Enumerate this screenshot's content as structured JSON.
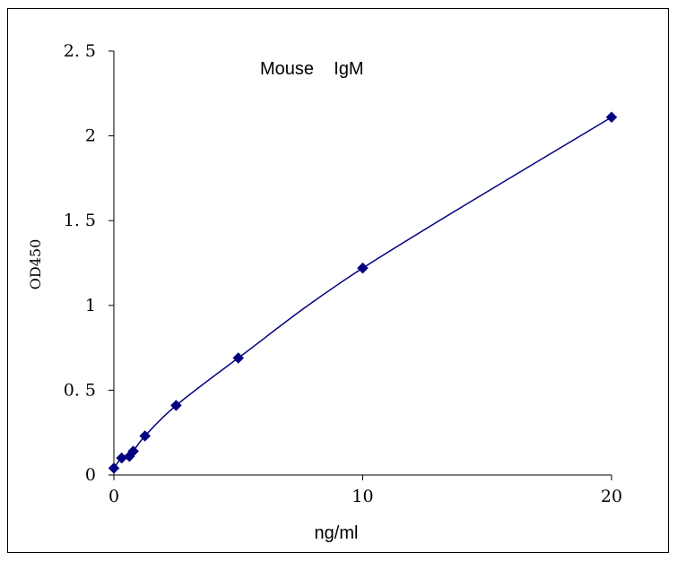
{
  "chart_data": {
    "type": "scatter",
    "title": "Mouse    IgM",
    "xlabel": "ng/ml",
    "ylabel": "OD450",
    "xlim": [
      0,
      20
    ],
    "ylim": [
      0,
      2.5
    ],
    "x_ticks": [
      0,
      10,
      20
    ],
    "x_tick_labels": [
      "0",
      "10",
      "20"
    ],
    "y_ticks": [
      0,
      0.5,
      1,
      1.5,
      2,
      2.5
    ],
    "y_tick_labels": [
      "0",
      "0. 5",
      "1",
      "1. 5",
      "2",
      "2. 5"
    ],
    "grid": false,
    "legend": "none",
    "series": [
      {
        "x": [
          0,
          0.3125,
          0.625,
          0.78,
          1.25,
          2.5,
          5,
          10,
          20
        ],
        "y": [
          0.04,
          0.1,
          0.11,
          0.14,
          0.23,
          0.41,
          0.69,
          1.22,
          2.11
        ],
        "color": "#000080",
        "marker": "diamond",
        "line": "smooth"
      }
    ]
  }
}
